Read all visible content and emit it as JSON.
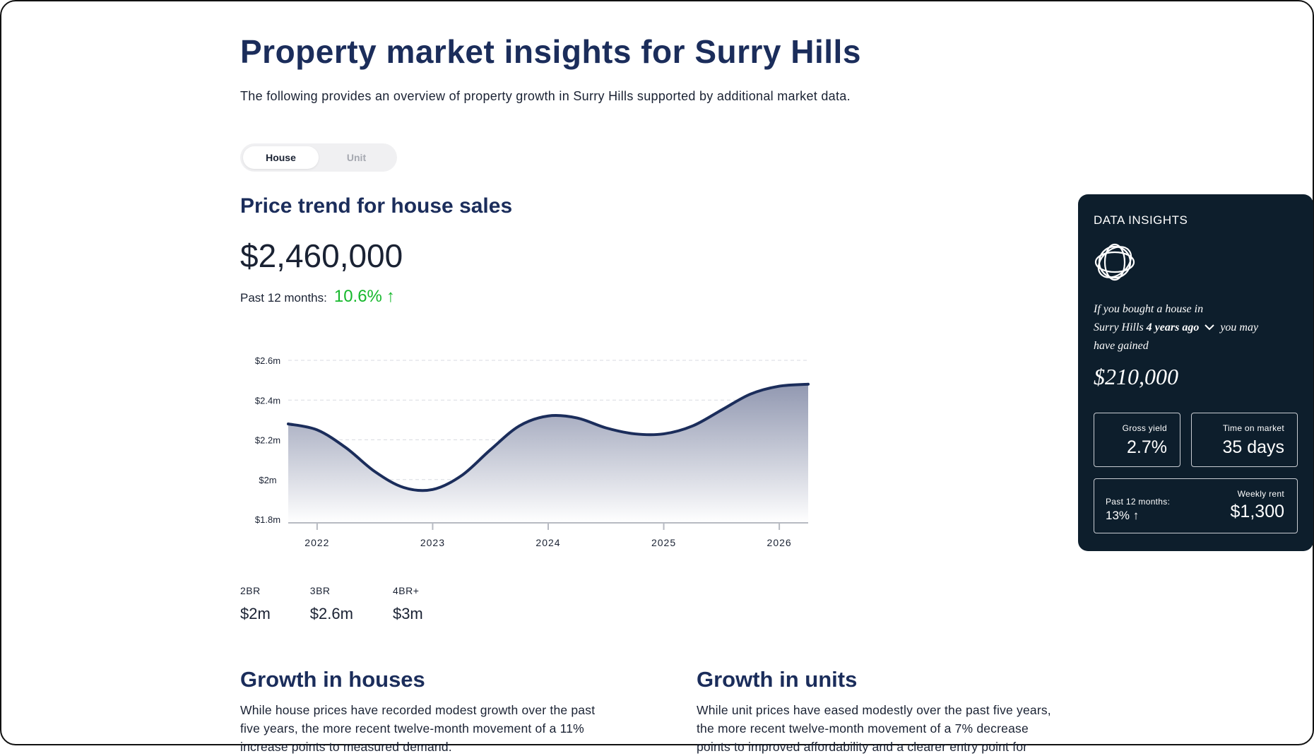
{
  "page": {
    "title": "Property market insights for Surry Hills",
    "subtitle": "The following provides an overview of property growth in Surry Hills supported by additional market data."
  },
  "toggle": {
    "options": [
      "House",
      "Unit"
    ],
    "selected": "House"
  },
  "price_trend": {
    "title": "Price trend for house sales",
    "price": "$2,460,000",
    "change_label": "Past 12 months:",
    "change_value": "10.6%",
    "change_direction": "up",
    "accent_color": "#16b82c"
  },
  "chart_data": {
    "type": "area",
    "x": [
      2021.75,
      2022.0,
      2022.25,
      2022.5,
      2022.75,
      2023.0,
      2023.25,
      2023.5,
      2023.75,
      2024.0,
      2024.25,
      2024.5,
      2024.75,
      2025.0,
      2025.25,
      2025.5,
      2025.75,
      2026.0,
      2026.25
    ],
    "y": [
      2.28,
      2.25,
      2.16,
      2.04,
      1.96,
      1.95,
      2.02,
      2.15,
      2.27,
      2.32,
      2.31,
      2.26,
      2.23,
      2.23,
      2.27,
      2.35,
      2.43,
      2.47,
      2.48
    ],
    "xticks": [
      "2022",
      "2023",
      "2024",
      "2025",
      "2026"
    ],
    "xtick_values": [
      2022,
      2023,
      2024,
      2025,
      2026
    ],
    "yticks": [
      "$1.8m",
      "$2m",
      "$2.2m",
      "$2.4m",
      "$2.6m"
    ],
    "ytick_values": [
      1.8,
      2.0,
      2.2,
      2.4,
      2.6
    ],
    "ylim": [
      1.8,
      2.6
    ],
    "xlim": [
      2021.75,
      2026.25
    ],
    "grid": true,
    "line_color": "#1b2d5b"
  },
  "bedrooms": [
    {
      "label": "2BR",
      "value": "$2m"
    },
    {
      "label": "3BR",
      "value": "$2.6m"
    },
    {
      "label": "4BR+",
      "value": "$3m"
    }
  ],
  "insights": {
    "header": "DATA INSIGHTS",
    "text_prefix_1": "If you bought a house in",
    "text_suburb": "Surry Hills",
    "text_period": "4 years ago",
    "text_suffix_1": "you may",
    "text_suffix_2": "have gained",
    "gain": "$210,000",
    "gross_yield_label": "Gross yield",
    "gross_yield_value": "2.7%",
    "time_on_market_label": "Time on market",
    "time_on_market_value": "35 days",
    "rent_change_label": "Past 12 months:",
    "rent_change_value": "13%",
    "weekly_rent_label": "Weekly rent",
    "weekly_rent_value": "$1,300"
  },
  "growth_houses": {
    "title": "Growth in houses",
    "text": "While house prices have recorded modest growth over the past five years, the more recent twelve-month movement of a 11% increase points to measured demand."
  },
  "growth_units": {
    "title": "Growth in units",
    "text": "While unit prices have eased modestly over the past five years, the more recent twelve-month movement of a 7% decrease points to improved affordability and a clearer entry point for"
  }
}
